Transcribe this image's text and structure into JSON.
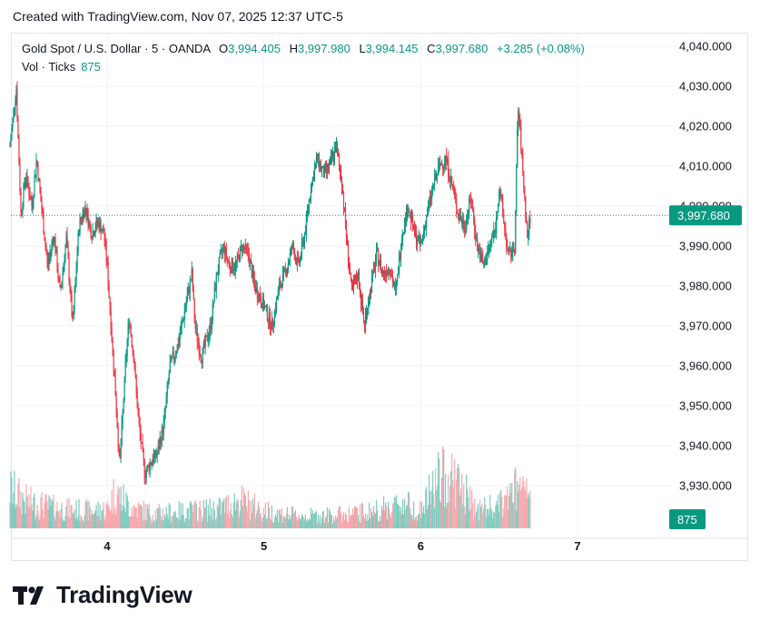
{
  "header": {
    "text": "Created with TradingView.com, Nov 07, 2025 12:37 UTC-5"
  },
  "legend": {
    "symbol": "Gold Spot / U.S. Dollar · 5 · OANDA",
    "open_label": "O",
    "open": "3,994.405",
    "high_label": "H",
    "high": "3,997.980",
    "low_label": "L",
    "low": "3,994.145",
    "close_label": "C",
    "close": "3,997.680",
    "change": "+3.285 (+0.08%)"
  },
  "volume_legend": {
    "label": "Vol · Ticks",
    "value": "875"
  },
  "brand": {
    "name": "TradingView"
  },
  "colors": {
    "up": "#089981",
    "down": "#f23645",
    "up_volume": "#7fccc0",
    "down_volume": "#f7a9ae",
    "grid": "#f0f3fa",
    "text": "#131722"
  },
  "chart_data": {
    "type": "candlestick",
    "price_axis": {
      "range": [
        3920,
        4045
      ],
      "ticks": [
        3930,
        3940,
        3950,
        3960,
        3970,
        3980,
        3990,
        4000,
        4010,
        4020,
        4030,
        4040
      ],
      "tick_labels": [
        "3,930.000",
        "3,940.000",
        "3,950.000",
        "3,960.000",
        "3,970.000",
        "3,980.000",
        "3,990.000",
        "4,000.000",
        "4,010.000",
        "4,020.000",
        "4,030.000",
        "4,040.000"
      ]
    },
    "x_ticks": [
      {
        "label": "4",
        "day": 4
      },
      {
        "label": "5",
        "day": 5
      },
      {
        "label": "6",
        "day": 6
      },
      {
        "label": "7",
        "day": 7
      }
    ],
    "last_price": {
      "value": 3997.68,
      "label": "3,997.680"
    },
    "last_volume": {
      "value": 875,
      "label": "875"
    },
    "volume_axis_max": 6000,
    "price_path": [
      [
        3.38,
        4015
      ],
      [
        3.42,
        4030
      ],
      [
        3.45,
        3998
      ],
      [
        3.48,
        4008
      ],
      [
        3.52,
        4000
      ],
      [
        3.55,
        4012
      ],
      [
        3.58,
        4000
      ],
      [
        3.62,
        3985
      ],
      [
        3.66,
        3993
      ],
      [
        3.7,
        3978
      ],
      [
        3.74,
        3992
      ],
      [
        3.78,
        3970
      ],
      [
        3.82,
        3995
      ],
      [
        3.86,
        4000
      ],
      [
        3.9,
        3993
      ],
      [
        3.94,
        3996
      ],
      [
        3.98,
        3993
      ],
      [
        4.0,
        3985
      ],
      [
        4.05,
        3955
      ],
      [
        4.08,
        3935
      ],
      [
        4.12,
        3962
      ],
      [
        4.14,
        3972
      ],
      [
        4.17,
        3962
      ],
      [
        4.2,
        3946
      ],
      [
        4.24,
        3933
      ],
      [
        4.28,
        3936
      ],
      [
        4.32,
        3938
      ],
      [
        4.36,
        3945
      ],
      [
        4.4,
        3960
      ],
      [
        4.45,
        3965
      ],
      [
        4.5,
        3975
      ],
      [
        4.54,
        3983
      ],
      [
        4.56,
        3970
      ],
      [
        4.6,
        3962
      ],
      [
        4.66,
        3970
      ],
      [
        4.7,
        3983
      ],
      [
        4.74,
        3990
      ],
      [
        4.78,
        3985
      ],
      [
        4.82,
        3985
      ],
      [
        4.86,
        3990
      ],
      [
        4.9,
        3988
      ],
      [
        4.94,
        3980
      ],
      [
        5.0,
        3975
      ],
      [
        5.05,
        3970
      ],
      [
        5.1,
        3980
      ],
      [
        5.15,
        3985
      ],
      [
        5.18,
        3990
      ],
      [
        5.22,
        3985
      ],
      [
        5.26,
        3993
      ],
      [
        5.3,
        4005
      ],
      [
        5.34,
        4012
      ],
      [
        5.38,
        4008
      ],
      [
        5.42,
        4010
      ],
      [
        5.46,
        4015
      ],
      [
        5.5,
        4005
      ],
      [
        5.52,
        3995
      ],
      [
        5.56,
        3978
      ],
      [
        5.6,
        3983
      ],
      [
        5.64,
        3970
      ],
      [
        5.66,
        3975
      ],
      [
        5.72,
        3988
      ],
      [
        5.76,
        3983
      ],
      [
        5.8,
        3985
      ],
      [
        5.84,
        3978
      ],
      [
        5.88,
        3993
      ],
      [
        5.92,
        4000
      ],
      [
        5.96,
        3993
      ],
      [
        6.0,
        3990
      ],
      [
        6.04,
        3998
      ],
      [
        6.08,
        4005
      ],
      [
        6.12,
        4010
      ],
      [
        6.16,
        4012
      ],
      [
        6.2,
        4005
      ],
      [
        6.24,
        3998
      ],
      [
        6.28,
        3995
      ],
      [
        6.32,
        4002
      ],
      [
        6.36,
        3990
      ],
      [
        6.4,
        3985
      ],
      [
        6.44,
        3990
      ],
      [
        6.48,
        3995
      ],
      [
        6.5,
        4005
      ],
      [
        6.54,
        3993
      ],
      [
        6.56,
        3987
      ],
      [
        6.6,
        3990
      ],
      [
        6.62,
        4025
      ],
      [
        6.64,
        4015
      ],
      [
        6.68,
        3992
      ],
      [
        6.7,
        3998
      ]
    ],
    "volume_path": [
      [
        3.38,
        1800
      ],
      [
        3.5,
        1200
      ],
      [
        3.7,
        900
      ],
      [
        3.9,
        800
      ],
      [
        4.0,
        900
      ],
      [
        4.05,
        1700
      ],
      [
        4.15,
        1000
      ],
      [
        4.3,
        700
      ],
      [
        4.5,
        800
      ],
      [
        4.7,
        900
      ],
      [
        4.85,
        1300
      ],
      [
        5.0,
        800
      ],
      [
        5.2,
        600
      ],
      [
        5.4,
        600
      ],
      [
        5.6,
        700
      ],
      [
        5.75,
        900
      ],
      [
        5.9,
        1200
      ],
      [
        6.0,
        800
      ],
      [
        6.1,
        2200
      ],
      [
        6.2,
        2500
      ],
      [
        6.35,
        900
      ],
      [
        6.5,
        1000
      ],
      [
        6.6,
        1800
      ],
      [
        6.7,
        1500
      ]
    ]
  }
}
